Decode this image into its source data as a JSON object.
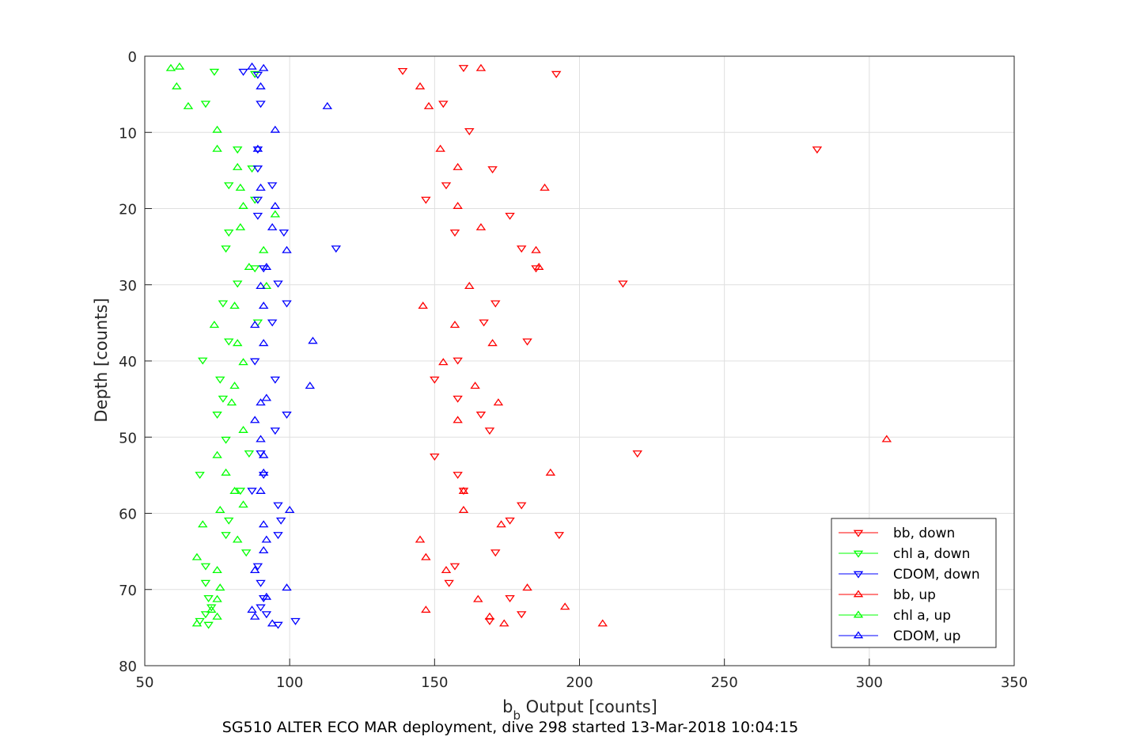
{
  "chart_data": {
    "type": "scatter",
    "xlabel_main": "b",
    "xlabel_sub": "b",
    "xlabel_rest": " Output [counts]",
    "ylabel": "Depth [counts]",
    "caption": "SG510 ALTER ECO MAR deployment, dive 298 started 13-Mar-2018 10:04:15",
    "xlim": [
      50,
      350
    ],
    "ylim": [
      0,
      80
    ],
    "y_reversed": true,
    "xticks": [
      50,
      100,
      150,
      200,
      250,
      300,
      350
    ],
    "yticks": [
      0,
      10,
      20,
      30,
      40,
      50,
      60,
      70,
      80
    ],
    "grid": true,
    "legend_position": "bottom-right",
    "series": [
      {
        "name": "bb, down",
        "color": "#ff0000",
        "marker": "triangle-down",
        "points": [
          [
            160,
            1.5
          ],
          [
            192,
            2.3
          ],
          [
            139,
            1.9
          ],
          [
            153,
            6.2
          ],
          [
            162,
            9.8
          ],
          [
            282,
            12.2
          ],
          [
            170,
            14.8
          ],
          [
            154,
            16.9
          ],
          [
            147,
            18.8
          ],
          [
            176,
            20.9
          ],
          [
            157,
            23.1
          ],
          [
            180,
            25.2
          ],
          [
            185,
            27.8
          ],
          [
            215,
            29.8
          ],
          [
            171,
            32.4
          ],
          [
            167,
            34.9
          ],
          [
            182,
            37.4
          ],
          [
            158,
            39.9
          ],
          [
            150,
            42.4
          ],
          [
            158,
            44.9
          ],
          [
            166,
            47.0
          ],
          [
            169,
            49.1
          ],
          [
            150,
            52.5
          ],
          [
            220,
            52.1
          ],
          [
            158,
            54.9
          ],
          [
            160,
            57.0
          ],
          [
            180,
            58.9
          ],
          [
            176,
            60.9
          ],
          [
            193,
            62.8
          ],
          [
            171,
            65.1
          ],
          [
            157,
            66.9
          ],
          [
            155,
            69.1
          ],
          [
            176,
            71.1
          ],
          [
            180,
            73.2
          ],
          [
            169,
            74.1
          ]
        ]
      },
      {
        "name": "chl a, down",
        "color": "#00ff00",
        "marker": "triangle-down",
        "points": [
          [
            74,
            2.0
          ],
          [
            88,
            2.3
          ],
          [
            71,
            6.2
          ],
          [
            82,
            12.2
          ],
          [
            87,
            14.7
          ],
          [
            79,
            16.9
          ],
          [
            88,
            18.8
          ],
          [
            79,
            23.1
          ],
          [
            78,
            25.2
          ],
          [
            88,
            27.8
          ],
          [
            82,
            29.8
          ],
          [
            77,
            32.4
          ],
          [
            89,
            34.9
          ],
          [
            79,
            37.4
          ],
          [
            70,
            39.9
          ],
          [
            76,
            42.4
          ],
          [
            77,
            44.9
          ],
          [
            75,
            47.0
          ],
          [
            78,
            50.3
          ],
          [
            86,
            52.1
          ],
          [
            69,
            54.9
          ],
          [
            83,
            57.0
          ],
          [
            79,
            60.9
          ],
          [
            78,
            62.8
          ],
          [
            85,
            65.1
          ],
          [
            71,
            66.9
          ],
          [
            71,
            69.1
          ],
          [
            72,
            71.1
          ],
          [
            73,
            72.3
          ],
          [
            71,
            73.2
          ],
          [
            69,
            74.1
          ],
          [
            72,
            74.6
          ]
        ]
      },
      {
        "name": "CDOM, down",
        "color": "#0000ff",
        "marker": "triangle-down",
        "points": [
          [
            84,
            2.0
          ],
          [
            89,
            2.4
          ],
          [
            90,
            6.2
          ],
          [
            89,
            12.2
          ],
          [
            89,
            14.7
          ],
          [
            94,
            16.9
          ],
          [
            89,
            18.8
          ],
          [
            89,
            20.9
          ],
          [
            98,
            23.1
          ],
          [
            116,
            25.2
          ],
          [
            91,
            27.8
          ],
          [
            96,
            29.8
          ],
          [
            99,
            32.4
          ],
          [
            94,
            34.9
          ],
          [
            88,
            40.0
          ],
          [
            95,
            42.4
          ],
          [
            99,
            47.0
          ],
          [
            95,
            49.1
          ],
          [
            90,
            52.1
          ],
          [
            91,
            54.9
          ],
          [
            87,
            57.0
          ],
          [
            96,
            58.9
          ],
          [
            97,
            60.9
          ],
          [
            96,
            62.8
          ],
          [
            89,
            66.9
          ],
          [
            90,
            69.1
          ],
          [
            91,
            71.1
          ],
          [
            92,
            73.2
          ],
          [
            90,
            72.3
          ],
          [
            102,
            74.1
          ],
          [
            96,
            74.6
          ]
        ]
      },
      {
        "name": "bb, up",
        "color": "#ff0000",
        "marker": "triangle-up",
        "points": [
          [
            166,
            1.6
          ],
          [
            145,
            4.0
          ],
          [
            148,
            6.6
          ],
          [
            152,
            12.2
          ],
          [
            158,
            14.6
          ],
          [
            188,
            17.3
          ],
          [
            158,
            19.7
          ],
          [
            166,
            22.5
          ],
          [
            185,
            25.5
          ],
          [
            186,
            27.7
          ],
          [
            162,
            30.2
          ],
          [
            146,
            32.8
          ],
          [
            157,
            35.3
          ],
          [
            170,
            37.7
          ],
          [
            153,
            40.2
          ],
          [
            164,
            43.3
          ],
          [
            172,
            45.5
          ],
          [
            158,
            47.8
          ],
          [
            306,
            50.3
          ],
          [
            190,
            54.7
          ],
          [
            160,
            57.1
          ],
          [
            160,
            59.6
          ],
          [
            173,
            61.5
          ],
          [
            145,
            63.5
          ],
          [
            147,
            65.8
          ],
          [
            154,
            67.5
          ],
          [
            182,
            69.8
          ],
          [
            165,
            71.3
          ],
          [
            195,
            72.3
          ],
          [
            147,
            72.7
          ],
          [
            169,
            73.6
          ],
          [
            174,
            74.5
          ],
          [
            208,
            74.5
          ]
        ]
      },
      {
        "name": "chl a, up",
        "color": "#00ff00",
        "marker": "triangle-up",
        "points": [
          [
            62,
            1.4
          ],
          [
            59,
            1.6
          ],
          [
            61,
            4.0
          ],
          [
            65,
            6.6
          ],
          [
            75,
            9.7
          ],
          [
            75,
            12.2
          ],
          [
            82,
            14.6
          ],
          [
            83,
            17.3
          ],
          [
            84,
            19.7
          ],
          [
            95,
            20.8
          ],
          [
            83,
            22.5
          ],
          [
            91,
            25.5
          ],
          [
            86,
            27.7
          ],
          [
            92,
            30.2
          ],
          [
            81,
            32.8
          ],
          [
            74,
            35.3
          ],
          [
            82,
            37.7
          ],
          [
            84,
            40.2
          ],
          [
            81,
            43.3
          ],
          [
            80,
            45.5
          ],
          [
            84,
            49.1
          ],
          [
            75,
            52.4
          ],
          [
            78,
            54.7
          ],
          [
            81,
            57.1
          ],
          [
            84,
            58.9
          ],
          [
            76,
            59.6
          ],
          [
            70,
            61.5
          ],
          [
            82,
            63.5
          ],
          [
            68,
            65.8
          ],
          [
            75,
            67.5
          ],
          [
            76,
            69.8
          ],
          [
            75,
            71.3
          ],
          [
            73,
            72.7
          ],
          [
            75,
            73.6
          ],
          [
            68,
            74.5
          ]
        ]
      },
      {
        "name": "CDOM, up",
        "color": "#0000ff",
        "marker": "triangle-up",
        "points": [
          [
            87,
            1.4
          ],
          [
            91,
            1.6
          ],
          [
            90,
            4.0
          ],
          [
            113,
            6.6
          ],
          [
            95,
            9.7
          ],
          [
            89,
            12.2
          ],
          [
            90,
            17.3
          ],
          [
            95,
            19.7
          ],
          [
            94,
            22.5
          ],
          [
            99,
            25.5
          ],
          [
            92,
            27.7
          ],
          [
            90,
            30.2
          ],
          [
            91,
            32.8
          ],
          [
            88,
            35.3
          ],
          [
            91,
            37.7
          ],
          [
            108,
            37.4
          ],
          [
            107,
            43.3
          ],
          [
            92,
            44.9
          ],
          [
            90,
            45.5
          ],
          [
            88,
            47.8
          ],
          [
            90,
            50.3
          ],
          [
            91,
            52.4
          ],
          [
            91,
            54.7
          ],
          [
            90,
            57.1
          ],
          [
            100,
            59.6
          ],
          [
            91,
            61.5
          ],
          [
            92,
            63.5
          ],
          [
            91,
            64.9
          ],
          [
            88,
            67.5
          ],
          [
            99,
            69.8
          ],
          [
            92,
            71.0
          ],
          [
            87,
            72.7
          ],
          [
            88,
            73.6
          ],
          [
            94,
            74.5
          ]
        ]
      }
    ]
  }
}
